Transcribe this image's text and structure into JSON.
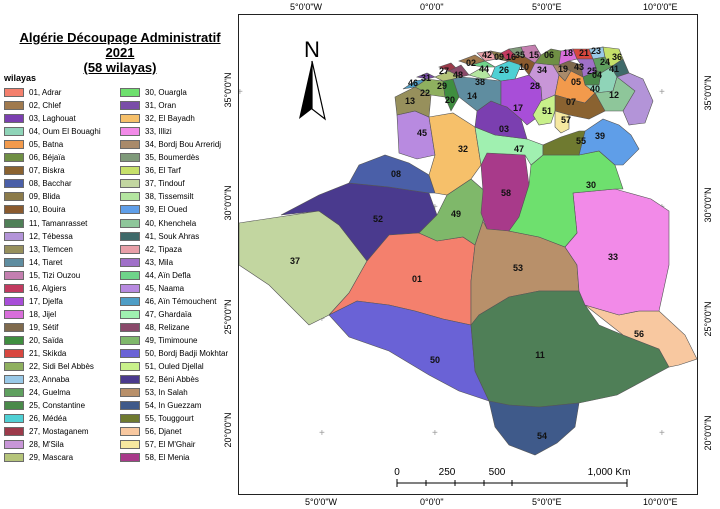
{
  "title": {
    "line1": "Algérie Découpage Administratif 2021",
    "line2": "(58 wilayas)"
  },
  "legend": {
    "title": "wilayas",
    "items": [
      {
        "label": "01, Adrar",
        "color": "#f4806d"
      },
      {
        "label": "02, Chlef",
        "color": "#a07a4e"
      },
      {
        "label": "03, Laghouat",
        "color": "#7b3fb0"
      },
      {
        "label": "04, Oum El Bouaghi",
        "color": "#8fd4b8"
      },
      {
        "label": "05, Batna",
        "color": "#f29a4c"
      },
      {
        "label": "06, Béjaïa",
        "color": "#6f8f44"
      },
      {
        "label": "07, Biskra",
        "color": "#8a6230"
      },
      {
        "label": "08, Bacchar",
        "color": "#4a5fa8"
      },
      {
        "label": "09, Blida",
        "color": "#8c7b4a"
      },
      {
        "label": "10, Bouira",
        "color": "#8a5a2e"
      },
      {
        "label": "11, Tamanrasset",
        "color": "#4f7f57"
      },
      {
        "label": "12, Tébessa",
        "color": "#b394d8"
      },
      {
        "label": "13, Tlemcen",
        "color": "#97905c"
      },
      {
        "label": "14, Tiaret",
        "color": "#5f8da0"
      },
      {
        "label": "15, Tizi Ouzou",
        "color": "#c47fb0"
      },
      {
        "label": "16, Algiers",
        "color": "#c23a5f"
      },
      {
        "label": "17, Djelfa",
        "color": "#a84ed8"
      },
      {
        "label": "18, Jijel",
        "color": "#d86eda"
      },
      {
        "label": "19, Sétif",
        "color": "#7f6a4d"
      },
      {
        "label": "20, Saïda",
        "color": "#3f8e3f"
      },
      {
        "label": "21, Skikda",
        "color": "#d8473f"
      },
      {
        "label": "22, Sidi Bel Abbès",
        "color": "#8fb05f"
      },
      {
        "label": "23, Annaba",
        "color": "#99c9e8"
      },
      {
        "label": "24, Guelma",
        "color": "#5fa05f"
      },
      {
        "label": "25, Constantine",
        "color": "#4a8a4a"
      },
      {
        "label": "26, Médéa",
        "color": "#4fd0d4"
      },
      {
        "label": "27, Mostaganem",
        "color": "#9c3a4a"
      },
      {
        "label": "28, M'Sila",
        "color": "#c896d8"
      },
      {
        "label": "29, Mascara",
        "color": "#b5c47a"
      },
      {
        "label": "30, Ouargla",
        "color": "#6ee06e"
      },
      {
        "label": "31, Oran",
        "color": "#7a4ea8"
      },
      {
        "label": "32, El Bayadh",
        "color": "#f6c06a"
      },
      {
        "label": "33, Illizi",
        "color": "#f28ae8"
      },
      {
        "label": "34, Bordj Bou Arreridj",
        "color": "#a98a6a"
      },
      {
        "label": "35, Boumerdès",
        "color": "#7f9a7a"
      },
      {
        "label": "36, El Tarf",
        "color": "#c6e06a"
      },
      {
        "label": "37, Tindouf",
        "color": "#c2d6a0"
      },
      {
        "label": "38, Tissemsilt",
        "color": "#b4e6a0"
      },
      {
        "label": "39, El Oued",
        "color": "#5f9ee8"
      },
      {
        "label": "40, Khenchela",
        "color": "#8ec69a"
      },
      {
        "label": "41, Souk Ahras",
        "color": "#3f6a6a"
      },
      {
        "label": "42, Tipaza",
        "color": "#e8a0a8"
      },
      {
        "label": "43, Mila",
        "color": "#a070c8"
      },
      {
        "label": "44, Aïn Defla",
        "color": "#6fd48a"
      },
      {
        "label": "45, Naama",
        "color": "#b88ae0"
      },
      {
        "label": "46, Aïn Témouchent",
        "color": "#4f9ec6"
      },
      {
        "label": "47, Ghardaïa",
        "color": "#a0f0b0"
      },
      {
        "label": "48, Relizane",
        "color": "#8a4a6a"
      },
      {
        "label": "49, Timimoune",
        "color": "#7fb86a"
      },
      {
        "label": "50, Bordj Badji Mokhtar",
        "color": "#6a62d6"
      },
      {
        "label": "51, Ouled Djellal",
        "color": "#c8f08a"
      },
      {
        "label": "52, Béni Abbès",
        "color": "#4a3a8e"
      },
      {
        "label": "53, In Salah",
        "color": "#b8906a"
      },
      {
        "label": "54, In Guezzam",
        "color": "#3f5a8a"
      },
      {
        "label": "55, Touggourt",
        "color": "#6f7a30"
      },
      {
        "label": "56, Djanet",
        "color": "#f8c8a0"
      },
      {
        "label": "57, El M'Ghair",
        "color": "#f6e8a0"
      },
      {
        "label": "58, El Menia",
        "color": "#a83a8a"
      }
    ]
  },
  "map": {
    "north_label": "N",
    "coords_top": [
      "5°0'0\"W",
      "0°0'0\"",
      "5°0'0\"E",
      "10°0'0\"E"
    ],
    "coords_bottom": [
      "5°0'0\"W",
      "0°0'0\"",
      "5°0'0\"E",
      "10°0'0\"E"
    ],
    "coords_left": [
      "35°0'0\"N",
      "30°0'0\"N",
      "25°0'0\"N",
      "20°0'0\"N"
    ],
    "coords_right": [
      "35°0'0\"N",
      "30°0'0\"N",
      "25°0'0\"N",
      "20°0'0\"N"
    ],
    "scale": {
      "ticks": [
        "0",
        "250",
        "500",
        "1,000 Km"
      ]
    },
    "region_labels": {
      "r01": "01",
      "r02": "02",
      "r03": "03",
      "r04": "04",
      "r05": "05",
      "r06": "06",
      "r07": "07",
      "r08": "08",
      "r09": "09",
      "r10": "10",
      "r11": "11",
      "r12": "12",
      "r13": "13",
      "r14": "14",
      "r15": "15",
      "r16": "16",
      "r17": "17",
      "r18": "18",
      "r19": "19",
      "r20": "20",
      "r21": "21",
      "r22": "22",
      "r23": "23",
      "r24": "24",
      "r25": "25",
      "r26": "26",
      "r27": "27",
      "r28": "28",
      "r29": "29",
      "r30": "30",
      "r31": "31",
      "r32": "32",
      "r33": "33",
      "r34": "34",
      "r35": "35",
      "r36": "36",
      "r37": "37",
      "r38": "38",
      "r39": "39",
      "r40": "40",
      "r41": "41",
      "r42": "42",
      "r43": "43",
      "r44": "44",
      "r45": "45",
      "r46": "46",
      "r47": "47",
      "r48": "48",
      "r49": "49",
      "r50": "50",
      "r51": "51",
      "r52": "52",
      "r53": "53",
      "r54": "54",
      "r55": "55",
      "r56": "56",
      "r57": "57",
      "r58": "58"
    }
  }
}
